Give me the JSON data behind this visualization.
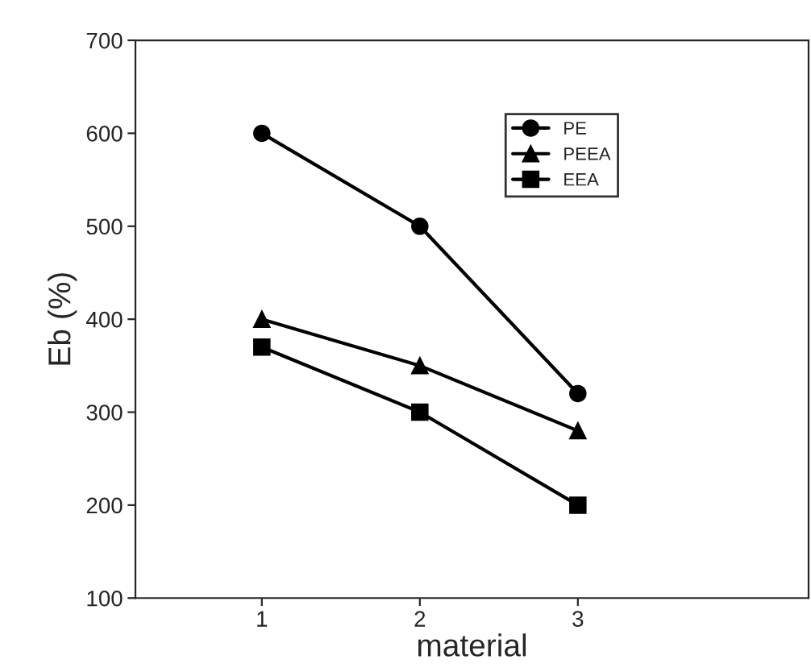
{
  "chart_data": {
    "type": "line",
    "xlabel": "material",
    "ylabel": "Eb (%)",
    "x": [
      1,
      2,
      3
    ],
    "xlim": [
      0.2,
      4.46
    ],
    "xticks": [
      1,
      2,
      3
    ],
    "ylim": [
      100,
      700
    ],
    "yticks": [
      100,
      200,
      300,
      400,
      500,
      600,
      700
    ],
    "grid": false,
    "legend": "top right",
    "line_style": "solid",
    "series": [
      {
        "name": "PE",
        "color": "#000000",
        "marker": "circle",
        "values": [
          600,
          500,
          320
        ]
      },
      {
        "name": "PEEA",
        "color": "#000000",
        "marker": "triangle",
        "values": [
          400,
          350,
          280
        ]
      },
      {
        "name": "EEA",
        "color": "#000000",
        "marker": "square",
        "values": [
          370,
          300,
          200
        ]
      }
    ]
  }
}
